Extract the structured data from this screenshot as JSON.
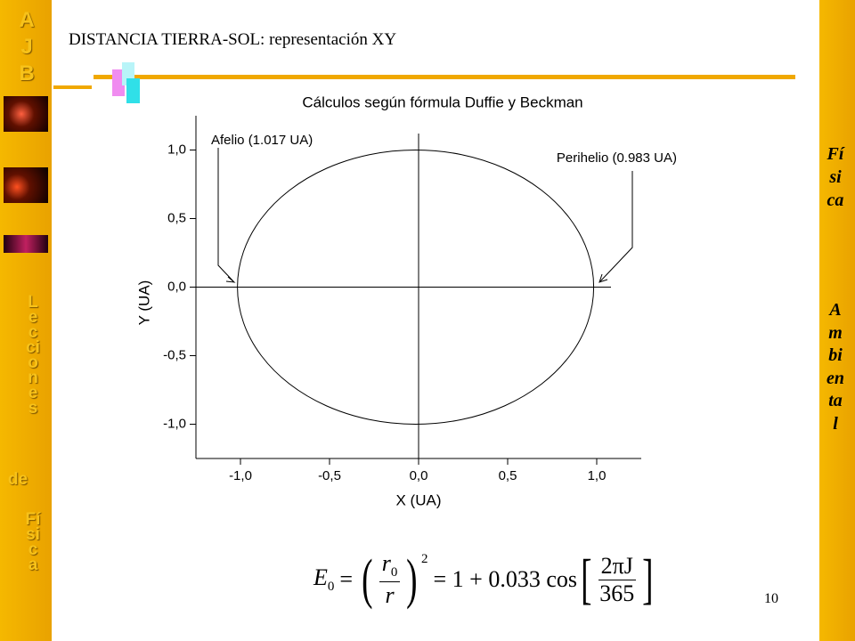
{
  "slide_title": "DISTANCIA TIERRA-SOL: representación XY",
  "logo": "AJB",
  "left_caption": {
    "line1": "Lecciones",
    "line2": "de",
    "line3": "Física"
  },
  "right_caption": {
    "line1": "Física",
    "line2": "Ambiental"
  },
  "page_number": "10",
  "formula": {
    "lhs": "E",
    "lhs_sub": "0",
    "num": "r",
    "num_sub": "0",
    "den": "r",
    "exp": "2",
    "rhs": "= 1 + 0.033 cos",
    "frac_num": "2πJ",
    "frac_den": "365"
  },
  "chart_data": {
    "type": "line",
    "title": "Cálculos según fórmula Duffie y Beckman",
    "xlabel": "X (UA)",
    "ylabel": "Y (UA)",
    "x": [
      0.983,
      0.949,
      0.849,
      0.69,
      0.483,
      0.242,
      -0.017,
      -0.276,
      -0.517,
      -0.724,
      -0.883,
      -0.983,
      -1.017,
      -0.983,
      -0.883,
      -0.724,
      -0.517,
      -0.276,
      -0.017,
      0.242,
      0.483,
      0.69,
      0.849,
      0.949,
      0.983
    ],
    "y": [
      0,
      0.259,
      0.5,
      0.707,
      0.866,
      0.966,
      1,
      0.966,
      0.866,
      0.707,
      0.5,
      0.259,
      0,
      -0.259,
      -0.5,
      -0.707,
      -0.866,
      -0.966,
      -1,
      -0.966,
      -0.866,
      -0.707,
      -0.5,
      -0.259,
      0
    ],
    "color": "#000000",
    "xlim": [
      -1.25,
      1.25
    ],
    "ylim": [
      -1.25,
      1.25
    ],
    "xticks": [
      {
        "value": -1.0,
        "label": "-1,0"
      },
      {
        "value": -0.5,
        "label": "-0,5"
      },
      {
        "value": 0,
        "label": "0,0"
      },
      {
        "value": 0.5,
        "label": "0,5"
      },
      {
        "value": 1.0,
        "label": "1,0"
      }
    ],
    "yticks": [
      {
        "value": -1.0,
        "label": "-1,0"
      },
      {
        "value": -0.5,
        "label": "-0,5"
      },
      {
        "value": 0,
        "label": "0,0"
      },
      {
        "value": 0.5,
        "label": "0,5"
      },
      {
        "value": 1.0,
        "label": "1,0"
      }
    ],
    "zero_lines": true,
    "annotations": [
      "Afelio (1.017 UA)",
      "Perihelio (0.983 UA)"
    ]
  }
}
